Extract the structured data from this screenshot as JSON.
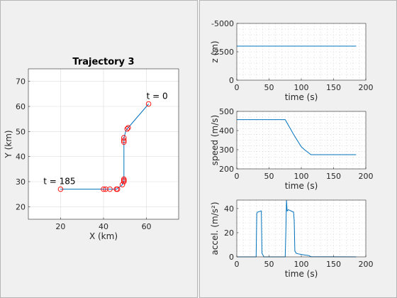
{
  "colors": {
    "line": "#0072bd",
    "marker": "#ff0000"
  },
  "chart_data": [
    {
      "type": "line",
      "title": "Trajectory 3",
      "xlabel": "X (km)",
      "ylabel": "Y (km)",
      "xlim": [
        5,
        75
      ],
      "ylim": [
        15,
        75
      ],
      "xticks": [
        20,
        40,
        60
      ],
      "yticks": [
        20,
        30,
        40,
        50,
        60,
        70
      ],
      "grid": true,
      "series": [
        {
          "role": "path",
          "x": [
            61,
            51.5,
            50.5,
            49.5,
            49.5,
            49.5,
            49.5,
            48.5,
            46,
            40,
            20
          ],
          "y": [
            61,
            51.5,
            50.5,
            47.5,
            46,
            31,
            30,
            28.5,
            27,
            27,
            27
          ]
        }
      ],
      "markers": {
        "x": [
          61,
          51.5,
          51,
          49.5,
          49.5,
          49.5,
          49.5,
          49.5,
          49.5,
          48.8,
          46.5,
          46,
          43,
          41,
          40,
          20
        ],
        "y": [
          61,
          51.5,
          51,
          47.5,
          46.5,
          45.8,
          31,
          30.5,
          30,
          28.8,
          27,
          27,
          27,
          27,
          27,
          27
        ]
      },
      "annotations": [
        {
          "text": "t = 0",
          "x": 60,
          "y": 63
        },
        {
          "text": "t = 185",
          "x": 12,
          "y": 29
        }
      ]
    },
    {
      "type": "line",
      "xlabel": "time (s)",
      "ylabel": "z (m)",
      "xlim": [
        0,
        200
      ],
      "ylim": [
        -5000,
        0
      ],
      "reverse_y": true,
      "xticks": [
        0,
        50,
        100,
        150,
        200
      ],
      "yticks": [
        -5000,
        -2500,
        0
      ],
      "grid": "major-minor",
      "series": [
        {
          "x": [
            0,
            185
          ],
          "y": [
            -3000,
            -3000
          ]
        }
      ]
    },
    {
      "type": "line",
      "xlabel": "time (s)",
      "ylabel": "speed (m/s)",
      "xlim": [
        0,
        200
      ],
      "ylim": [
        200,
        500
      ],
      "xticks": [
        0,
        50,
        100,
        150,
        200
      ],
      "yticks": [
        200,
        300,
        400,
        500
      ],
      "grid": "major-minor",
      "series": [
        {
          "x": [
            0,
            75,
            88,
            100,
            105,
            115,
            185
          ],
          "y": [
            457,
            457,
            380,
            315,
            300,
            274,
            274
          ]
        }
      ]
    },
    {
      "type": "line",
      "xlabel": "time (s)",
      "ylabel": "accel. (m/s²)",
      "xlim": [
        0,
        200
      ],
      "ylim": [
        0,
        47
      ],
      "xticks": [
        0,
        50,
        100,
        150,
        200
      ],
      "yticks": [
        0,
        20,
        40
      ],
      "grid": "major-minor",
      "series": [
        {
          "x": [
            0,
            30,
            31,
            32,
            38,
            39,
            42,
            75,
            76,
            77,
            78,
            80,
            88,
            89,
            90,
            92,
            95,
            100,
            105,
            112,
            115,
            185
          ],
          "y": [
            0,
            0,
            36,
            37,
            38,
            3,
            0,
            0,
            20,
            47,
            38,
            39,
            37,
            30,
            5,
            3,
            2.5,
            2,
            1.5,
            1,
            0.2,
            0
          ]
        }
      ]
    }
  ]
}
